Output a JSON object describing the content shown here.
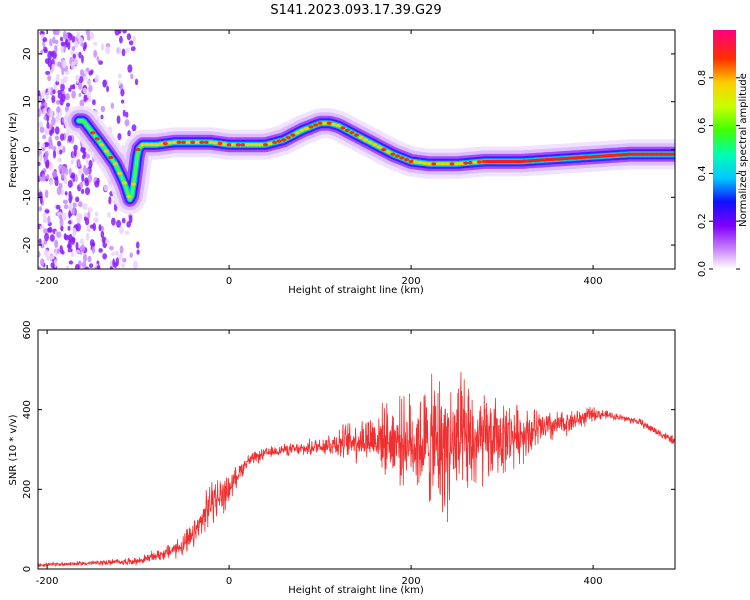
{
  "figure_title": "S141.2023.093.17.39.G29",
  "colorbar": {
    "label": "Normalized spectral amplitude",
    "ticks": [
      "0.0",
      "0.2",
      "0.4",
      "0.6",
      "0.8"
    ],
    "tick_values": [
      0.0,
      0.2,
      0.4,
      0.6,
      0.8
    ],
    "range": [
      0,
      1
    ]
  },
  "chart_data": [
    {
      "type": "heatmap",
      "title": "",
      "xlabel": "Height of straight line (km)",
      "ylabel": "Frequency (Hz)",
      "xlim": [
        -210,
        490
      ],
      "ylim": [
        -25,
        25
      ],
      "xticks": [
        -200,
        0,
        200,
        400
      ],
      "yticks": [
        -20,
        -10,
        0,
        10,
        20
      ],
      "xtick_labels": [
        "-200",
        "0",
        "200",
        "400"
      ],
      "ytick_labels": [
        "-20",
        "-10",
        "0",
        "10",
        "20"
      ],
      "ridge": {
        "x": [
          -160,
          -140,
          -125,
          -115,
          -108,
          -104,
          -100,
          -95,
          -80,
          -60,
          -40,
          -20,
          0,
          20,
          40,
          60,
          80,
          100,
          110,
          120,
          140,
          160,
          180,
          200,
          220,
          250,
          280,
          320,
          360,
          400,
          440,
          490
        ],
        "y": [
          6,
          1,
          -3,
          -7,
          -11,
          -6,
          0,
          1,
          1,
          1.5,
          1.5,
          1.5,
          1,
          1,
          1,
          2,
          4,
          5.5,
          5.5,
          5,
          3,
          1,
          -1,
          -2.5,
          -3,
          -3,
          -2.5,
          -2.5,
          -2,
          -1.5,
          -1,
          -1
        ]
      }
    },
    {
      "type": "line",
      "title": "",
      "xlabel": "Height of straight line (km)",
      "ylabel": "SNR (10 * v/v)",
      "xlim": [
        -210,
        490
      ],
      "ylim": [
        0,
        600
      ],
      "xticks": [
        -200,
        0,
        200,
        400
      ],
      "yticks": [
        0,
        200,
        400,
        600
      ],
      "xtick_labels": [
        "-200",
        "0",
        "200",
        "400"
      ],
      "ytick_labels": [
        "0",
        "200",
        "400",
        "600"
      ],
      "color": "#f03030",
      "envelope": {
        "x": [
          -210,
          -150,
          -100,
          -70,
          -50,
          -40,
          -30,
          -20,
          -10,
          0,
          10,
          20,
          40,
          60,
          80,
          100,
          130,
          160,
          200,
          230,
          250,
          280,
          320,
          360,
          390,
          400,
          420,
          450,
          490
        ],
        "mean": [
          10,
          15,
          20,
          40,
          60,
          80,
          120,
          170,
          180,
          200,
          240,
          270,
          290,
          300,
          300,
          310,
          320,
          330,
          320,
          310,
          310,
          320,
          340,
          360,
          380,
          390,
          385,
          370,
          320
        ],
        "spread": [
          4,
          5,
          8,
          15,
          25,
          30,
          35,
          50,
          45,
          30,
          20,
          15,
          12,
          12,
          15,
          20,
          40,
          60,
          100,
          150,
          150,
          100,
          60,
          30,
          20,
          15,
          8,
          8,
          10
        ]
      }
    }
  ]
}
